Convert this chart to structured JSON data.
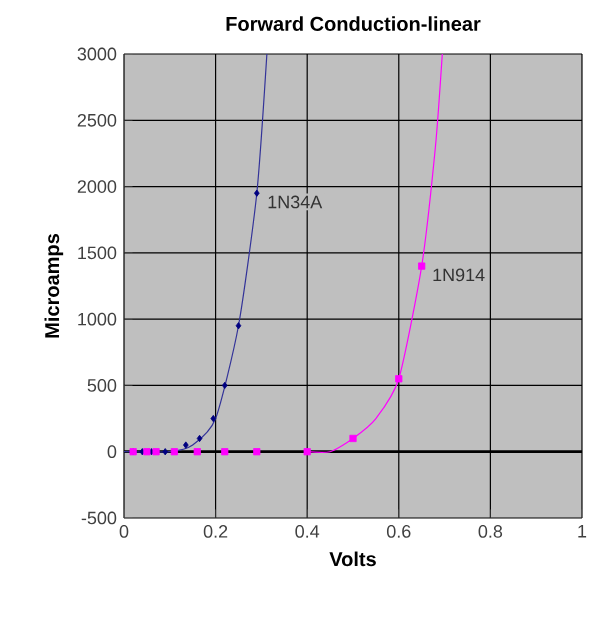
{
  "chart_data": {
    "type": "line",
    "title": "Forward Conduction-linear",
    "xlabel": "Volts",
    "ylabel": "Microamps",
    "xlim": [
      0,
      1
    ],
    "ylim": [
      -500,
      3000
    ],
    "xticks": [
      0,
      0.2,
      0.4,
      0.6,
      0.8,
      1
    ],
    "yticks": [
      -500,
      0,
      500,
      1000,
      1500,
      2000,
      2500,
      3000
    ],
    "grid": true,
    "series": [
      {
        "name": "1N34A",
        "type": "scatter",
        "marker": "diamond",
        "color": "#000080",
        "x": [
          0.02,
          0.04,
          0.06,
          0.09,
          0.135,
          0.165,
          0.195,
          0.22,
          0.25,
          0.29
        ],
        "values": [
          0,
          0,
          0,
          0,
          50,
          100,
          250,
          500,
          950,
          1950
        ]
      },
      {
        "color": "#333399",
        "x": [
          0.0,
          0.1,
          0.15,
          0.2,
          0.25,
          0.29,
          0.312
        ],
        "values": [
          0,
          0,
          50,
          250,
          950,
          1950,
          3000
        ]
      },
      {
        "name": "1N914",
        "type": "scatter",
        "marker": "square",
        "color": "#ff00ff",
        "x": [
          0.02,
          0.05,
          0.07,
          0.11,
          0.16,
          0.22,
          0.29,
          0.4,
          0.5,
          0.6,
          0.65
        ],
        "values": [
          0,
          0,
          0,
          0,
          0,
          0,
          0,
          0,
          100,
          550,
          1400
        ]
      },
      {
        "color": "#ff00ff",
        "x": [
          0.4,
          0.45,
          0.5,
          0.55,
          0.6,
          0.65,
          0.68,
          0.695
        ],
        "values": [
          0,
          0,
          100,
          250,
          550,
          1400,
          2300,
          3000
        ]
      }
    ]
  }
}
